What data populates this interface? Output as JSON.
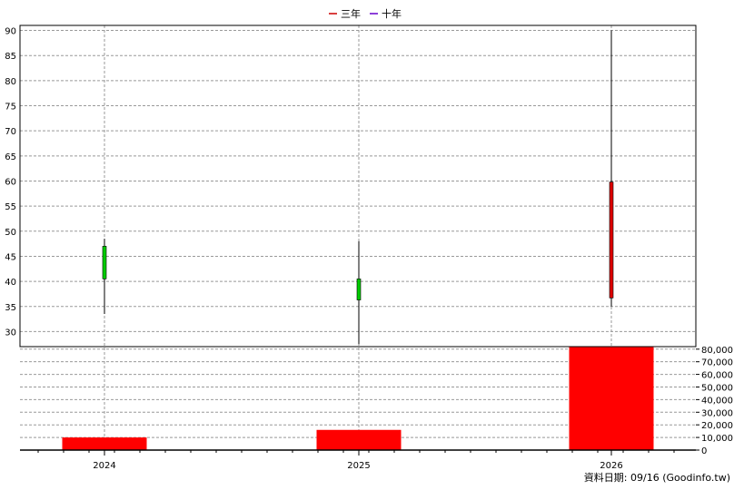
{
  "legend": [
    {
      "label": "三年",
      "color": "#cc0000"
    },
    {
      "label": "十年",
      "color": "#6600cc"
    }
  ],
  "footer": "資料日期: 09/16 (Goodinfo.tw)",
  "colors": {
    "up": "#dd0000",
    "down": "#00cc00",
    "volume": "#ff0000",
    "grid": "#999999"
  },
  "chart_data": [
    {
      "type": "candlestick",
      "categories": [
        "2024",
        "2025",
        "2026"
      ],
      "series": [
        {
          "open": 47,
          "close": 40.5,
          "high": 48.5,
          "low": 33.5
        },
        {
          "open": 40.5,
          "close": 36.3,
          "high": 48.0,
          "low": 27.5
        },
        {
          "open": 36.7,
          "close": 59.8,
          "high": 90.0,
          "low": 35.0
        }
      ],
      "ylim": [
        27,
        91
      ],
      "yticks": [
        30,
        35,
        40,
        45,
        50,
        55,
        60,
        65,
        70,
        75,
        80,
        85,
        90
      ],
      "grid": true
    },
    {
      "type": "bar",
      "categories": [
        "2024",
        "2025",
        "2026"
      ],
      "values": [
        10000,
        16000,
        82000
      ],
      "ylim": [
        0,
        82000
      ],
      "yticks": [
        0,
        10000,
        20000,
        30000,
        40000,
        50000,
        60000,
        70000,
        80000
      ],
      "ytick_labels": [
        "0",
        "10,000",
        "20,000",
        "30,000",
        "40,000",
        "50,000",
        "60,000",
        "70,000",
        "80,000"
      ],
      "grid": true
    }
  ]
}
